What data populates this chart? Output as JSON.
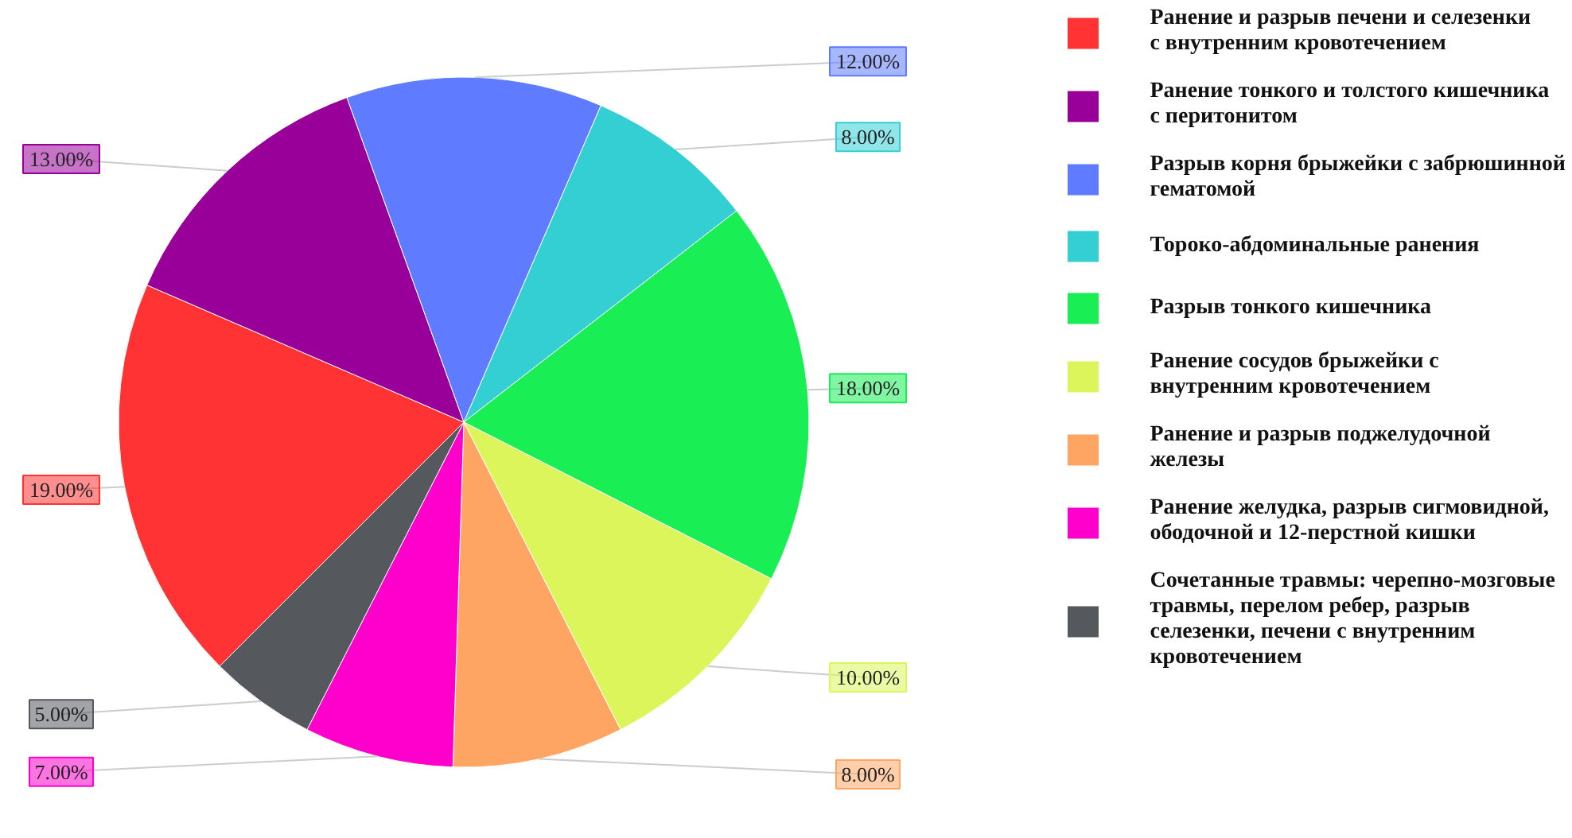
{
  "chart_data": {
    "type": "pie",
    "categories": [
      "Ранение и разрыв печени и селезенки с внутренним кровотечением",
      "Ранение тонкого и толстого кишечника с перитонитом",
      "Разрыв корня брыжейки с забрюшинной гематомой",
      "Тороко-абдоминальные ранения",
      "Разрыв тонкого кишечника",
      "Ранение сосудов брыжейки с внутренним кровотечением",
      "Ранение и разрыв поджелудочной железы",
      "Ранение желудка, разрыв сигмовидной, ободочной и 12-перстной кишки",
      "Сочетанные травмы: черепно-мозговые травмы, перелом ребер, разрыв селезенки, печени с внутренним кровотечением"
    ],
    "values": [
      19,
      13,
      12,
      8,
      18,
      10,
      8,
      7,
      5
    ],
    "value_labels": [
      "19.00%",
      "13.00%",
      "12.00%",
      "8.00%",
      "18.00%",
      "10.00%",
      "8.00%",
      "7.00%",
      "5.00%"
    ],
    "colors": [
      "#ff3333",
      "#990099",
      "#5f7bff",
      "#33cfd3",
      "#19ef55",
      "#dbf55a",
      "#ffa564",
      "#ff00cc",
      "#55595e"
    ],
    "legend": "right"
  }
}
